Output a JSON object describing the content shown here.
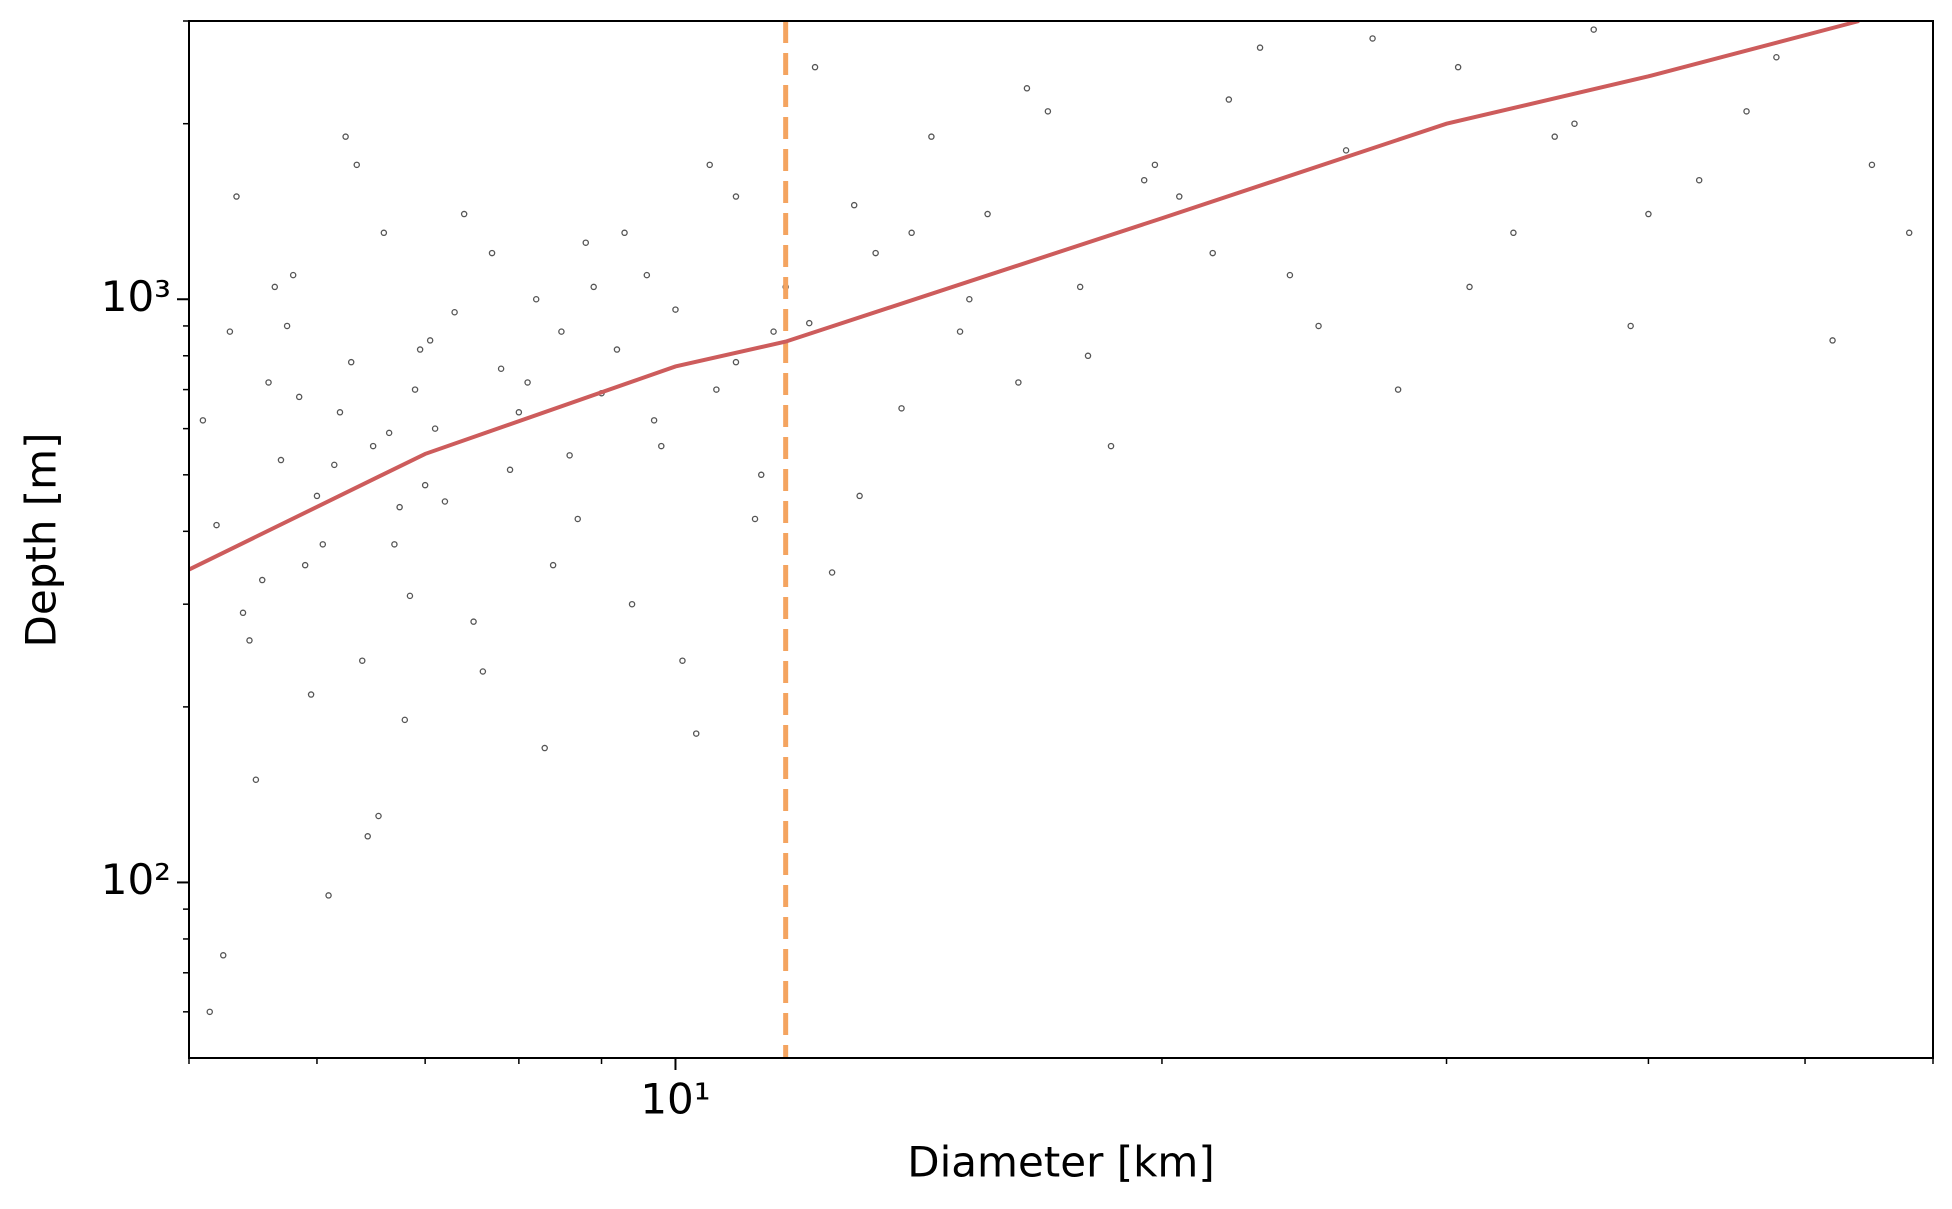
{
  "chart_data": {
    "type": "scatter",
    "xlabel": "Diameter [km]",
    "ylabel": "Depth [m]",
    "xscale": "log",
    "yscale": "log",
    "xlim": [
      5,
      60
    ],
    "ylim": [
      50,
      3000
    ],
    "xticks": [
      {
        "value": 10,
        "label": "10¹"
      }
    ],
    "yticks": [
      {
        "value": 100,
        "label": "10²"
      },
      {
        "value": 1000,
        "label": "10³"
      }
    ],
    "xminorticks": [
      5,
      6,
      7,
      8,
      9,
      20,
      30,
      40,
      50,
      60
    ],
    "yminorticks": [
      60,
      70,
      80,
      90,
      200,
      300,
      400,
      500,
      600,
      700,
      800,
      900,
      2000,
      3000
    ],
    "series": [
      {
        "type": "scatter",
        "color": "#555555",
        "x": [
          5.1,
          5.2,
          5.3,
          5.4,
          5.5,
          5.6,
          5.7,
          5.8,
          5.9,
          6.0,
          6.1,
          6.2,
          6.3,
          6.4,
          6.5,
          6.6,
          6.7,
          6.8,
          6.9,
          7.0,
          5.15,
          5.35,
          5.55,
          5.75,
          5.95,
          6.15,
          6.35,
          6.55,
          6.75,
          6.95,
          7.1,
          7.3,
          7.5,
          7.7,
          7.9,
          8.1,
          8.3,
          8.5,
          8.7,
          8.9,
          5.25,
          5.45,
          5.65,
          5.85,
          6.05,
          6.25,
          6.45,
          6.65,
          6.85,
          7.05,
          7.2,
          7.4,
          7.6,
          7.8,
          8.0,
          8.2,
          8.4,
          8.6,
          8.8,
          9.0,
          9.2,
          9.4,
          9.6,
          9.8,
          10.0,
          10.3,
          10.6,
          10.9,
          11.2,
          11.5,
          9.3,
          9.7,
          10.1,
          10.5,
          10.9,
          11.3,
          11.7,
          12.1,
          12.5,
          12.9,
          13.3,
          13.8,
          14.4,
          15.0,
          15.6,
          16.3,
          17.0,
          17.8,
          18.6,
          19.5,
          12.2,
          13.0,
          14.0,
          15.2,
          16.5,
          18.0,
          19.8,
          21.5,
          23.0,
          25.0,
          20.5,
          22.0,
          24.0,
          26.0,
          28.0,
          30.5,
          33.0,
          36.0,
          39.0,
          43.0,
          27.0,
          31.0,
          35.0,
          40.0,
          46.0,
          52.0,
          58.0,
          48.0,
          55.0,
          37.0
        ],
        "y": [
          620,
          410,
          880,
          290,
          150,
          720,
          530,
          1100,
          350,
          460,
          95,
          640,
          780,
          240,
          560,
          1300,
          380,
          190,
          700,
          480,
          60,
          1500,
          330,
          900,
          210,
          520,
          1700,
          130,
          440,
          820,
          600,
          950,
          280,
          1200,
          510,
          720,
          170,
          880,
          420,
          1050,
          75,
          260,
          1050,
          680,
          380,
          1900,
          120,
          590,
          310,
          850,
          450,
          1400,
          230,
          760,
          640,
          1000,
          350,
          540,
          1250,
          690,
          820,
          300,
          1100,
          560,
          960,
          180,
          700,
          1500,
          420,
          880,
          1300,
          620,
          240,
          1700,
          780,
          500,
          1050,
          910,
          340,
          1450,
          1200,
          650,
          1900,
          880,
          1400,
          720,
          2100,
          1050,
          560,
          1600,
          2500,
          460,
          1300,
          1000,
          2300,
          800,
          1700,
          1200,
          2700,
          900,
          1500,
          2200,
          1100,
          1800,
          700,
          2500,
          1300,
          2000,
          900,
          1600,
          2800,
          1050,
          1900,
          1400,
          2100,
          850,
          1300,
          2600,
          1700,
          2900
        ]
      },
      {
        "type": "line",
        "color": "#cd5c5c",
        "x": [
          5,
          7,
          10,
          11.7,
          20,
          30,
          40,
          54
        ],
        "y": [
          344,
          543,
          767,
          846,
          1377,
          2000,
          2411,
          3000
        ]
      }
    ],
    "vlines": [
      {
        "x": 11.7,
        "color": "#f4a460"
      }
    ]
  }
}
